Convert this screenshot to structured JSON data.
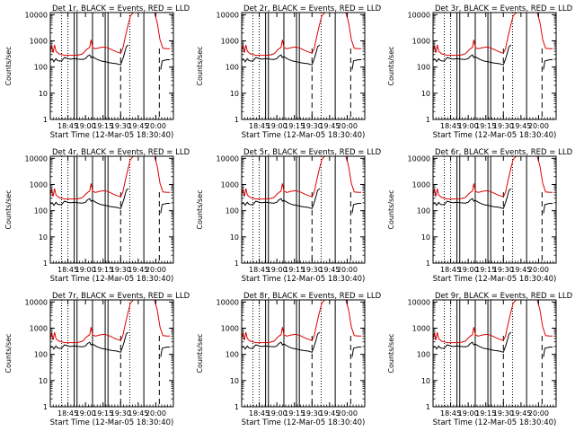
{
  "chart_data": [
    {
      "type": "line",
      "title": "Det 1r, BLACK = Events, RED = LLD"
    },
    {
      "type": "line",
      "title": "Det 2r, BLACK = Events, RED = LLD"
    },
    {
      "type": "line",
      "title": "Det 3r, BLACK = Events, RED = LLD"
    },
    {
      "type": "line",
      "title": "Det 4r, BLACK = Events, RED = LLD"
    },
    {
      "type": "line",
      "title": "Det 5r, BLACK = Events, RED = LLD"
    },
    {
      "type": "line",
      "title": "Det 6r, BLACK = Events, RED = LLD"
    },
    {
      "type": "line",
      "title": "Det 7r, BLACK = Events, RED = LLD"
    },
    {
      "type": "line",
      "title": "Det 8r, BLACK = Events, RED = LLD"
    },
    {
      "type": "line",
      "title": "Det 9r, BLACK = Events, RED = LLD"
    }
  ],
  "shared": {
    "xlabel": "Start Time (12-Mar-05 18:30:40)",
    "ylabel": "Counts/sec",
    "xlim": [
      18.5,
      20.25
    ],
    "ylim": [
      1,
      12000
    ],
    "yscale": "log",
    "xticks": [
      {
        "v": 18.75,
        "label": "18:45"
      },
      {
        "v": 19.0,
        "label": "19:00"
      },
      {
        "v": 19.25,
        "label": "19:15"
      },
      {
        "v": 19.5,
        "label": "19:30"
      },
      {
        "v": 19.75,
        "label": "19:45"
      },
      {
        "v": 20.0,
        "label": "20:00"
      }
    ],
    "yticks": [
      {
        "v": 1,
        "label": "1"
      },
      {
        "v": 10,
        "label": "10"
      },
      {
        "v": 100,
        "label": "100"
      },
      {
        "v": 1000,
        "label": "1000"
      },
      {
        "v": 10000,
        "label": "10000"
      }
    ],
    "vlines_dotted": [
      18.66,
      18.75,
      19.63
    ],
    "vlines_solid": [
      18.84,
      18.88,
      19.1,
      19.28,
      19.32,
      19.83
    ],
    "vlines_dashed": [
      19.5,
      20.05
    ],
    "series": [
      {
        "name": "Events",
        "color": "#000000",
        "x": [
          18.5,
          18.53,
          18.55,
          18.58,
          18.6,
          18.62,
          18.66,
          18.7,
          18.78,
          18.84,
          18.9,
          18.96,
          19.0,
          19.03,
          19.06,
          19.08,
          19.1,
          19.12,
          19.16,
          19.22,
          19.28,
          19.32,
          19.38,
          19.44,
          19.5,
          19.53,
          19.55,
          19.58,
          19.61
        ],
        "y": [
          180,
          200,
          160,
          210,
          180,
          170,
          170,
          230,
          200,
          210,
          200,
          195,
          210,
          260,
          290,
          230,
          250,
          230,
          200,
          170,
          160,
          150,
          140,
          135,
          120,
          200,
          300,
          600,
          700
        ]
      },
      {
        "name": "LLD",
        "color": "#dd0000",
        "x": [
          18.5,
          18.52,
          18.54,
          18.56,
          18.58,
          18.6,
          18.62,
          18.66,
          18.7,
          18.78,
          18.84,
          18.9,
          18.96,
          19.0,
          19.03,
          19.06,
          19.08,
          19.1,
          19.14,
          19.2,
          19.26,
          19.32,
          19.38,
          19.44,
          19.5,
          19.53,
          19.56,
          19.6,
          19.64,
          19.68
        ],
        "y": [
          400,
          650,
          350,
          700,
          400,
          360,
          320,
          300,
          280,
          280,
          280,
          290,
          320,
          420,
          500,
          560,
          1100,
          560,
          500,
          550,
          580,
          540,
          450,
          380,
          340,
          500,
          1200,
          3500,
          9000,
          12000
        ]
      },
      {
        "name": "LLD",
        "color": "#dd0000",
        "x": [
          19.98,
          20.02,
          20.06,
          20.1,
          20.16,
          20.2
        ],
        "y": [
          12000,
          5000,
          1100,
          520,
          500,
          500
        ]
      },
      {
        "name": "Events",
        "color": "#000000",
        "x": [
          20.07,
          20.09,
          20.12,
          20.16,
          20.2
        ],
        "y": [
          80,
          170,
          180,
          190,
          190
        ]
      }
    ]
  }
}
